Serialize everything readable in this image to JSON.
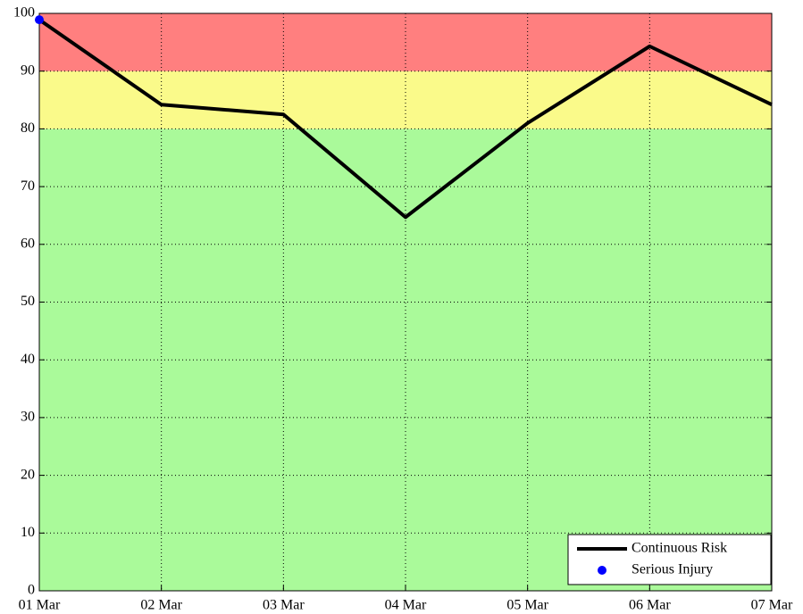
{
  "chart_data": {
    "type": "line",
    "categories": [
      "01 Mar",
      "02 Mar",
      "03 Mar",
      "04 Mar",
      "05 Mar",
      "06 Mar",
      "07 Mar"
    ],
    "series": [
      {
        "name": "Continuous Risk",
        "color": "#000000",
        "type": "line",
        "values": [
          98.9,
          84.2,
          82.5,
          64.7,
          81.0,
          94.3,
          84.2
        ]
      },
      {
        "name": "Serious Injury",
        "color": "#0000ff",
        "type": "scatter",
        "values": [
          98.9,
          null,
          null,
          null,
          null,
          null,
          null
        ]
      }
    ],
    "bands": [
      {
        "from": 0,
        "to": 80,
        "color": "#aafa9a"
      },
      {
        "from": 80,
        "to": 90,
        "color": "#fafa8a"
      },
      {
        "from": 90,
        "to": 100,
        "color": "#ff7f7f"
      }
    ],
    "ylim": [
      0,
      100
    ],
    "yticks": [
      0,
      10,
      20,
      30,
      40,
      50,
      60,
      70,
      80,
      90,
      100
    ],
    "grid": true,
    "legend": "lower right"
  }
}
